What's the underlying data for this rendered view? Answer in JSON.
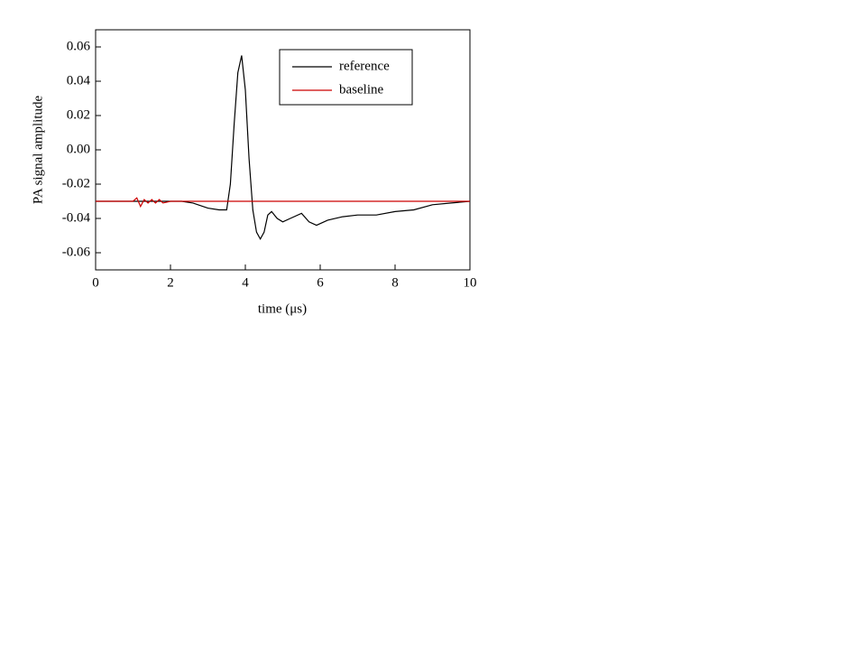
{
  "chart_data": {
    "type": "line",
    "xlabel": "time (μs)",
    "ylabel": "PA signal amplitude",
    "x": [
      0,
      0.5,
      1.0,
      1.1,
      1.2,
      1.3,
      1.4,
      1.5,
      1.6,
      1.7,
      1.8,
      2.0,
      2.3,
      2.6,
      3.0,
      3.3,
      3.5,
      3.6,
      3.7,
      3.8,
      3.9,
      4.0,
      4.1,
      4.2,
      4.3,
      4.4,
      4.5,
      4.6,
      4.7,
      4.85,
      5.0,
      5.2,
      5.5,
      5.7,
      5.9,
      6.2,
      6.6,
      7.0,
      7.5,
      8.0,
      8.5,
      9.0,
      9.5,
      10
    ],
    "series": [
      {
        "name": "reference",
        "color": "#000000",
        "values": [
          -0.03,
          -0.03,
          -0.03,
          -0.03,
          -0.03,
          -0.03,
          -0.03,
          -0.03,
          -0.03,
          -0.03,
          -0.03,
          -0.03,
          -0.03,
          -0.031,
          -0.034,
          -0.035,
          -0.035,
          -0.02,
          0.015,
          0.045,
          0.055,
          0.035,
          -0.005,
          -0.035,
          -0.048,
          -0.052,
          -0.048,
          -0.038,
          -0.036,
          -0.04,
          -0.042,
          -0.04,
          -0.037,
          -0.042,
          -0.044,
          -0.041,
          -0.039,
          -0.038,
          -0.038,
          -0.036,
          -0.035,
          -0.032,
          -0.031,
          -0.03
        ]
      },
      {
        "name": "baseline",
        "color": "#cc0000",
        "values": [
          -0.03,
          -0.03,
          -0.03,
          -0.028,
          -0.033,
          -0.029,
          -0.031,
          -0.029,
          -0.031,
          -0.029,
          -0.031,
          -0.03,
          -0.03,
          -0.03,
          -0.03,
          -0.03,
          -0.03,
          -0.03,
          -0.03,
          -0.03,
          -0.03,
          -0.03,
          -0.03,
          -0.03,
          -0.03,
          -0.03,
          -0.03,
          -0.03,
          -0.03,
          -0.03,
          -0.03,
          -0.03,
          -0.03,
          -0.03,
          -0.03,
          -0.03,
          -0.03,
          -0.03,
          -0.03,
          -0.03,
          -0.03,
          -0.03,
          -0.03,
          -0.03
        ]
      }
    ],
    "xlim": [
      0,
      10
    ],
    "xticks": [
      0,
      2,
      4,
      6,
      8,
      10
    ],
    "ylim": [
      -0.07,
      0.07
    ],
    "yticks": [
      -0.06,
      -0.04,
      -0.02,
      {
        "value": 0,
        "label": "0.00"
      },
      0.02,
      0.04,
      0.06
    ],
    "legend": "upper right",
    "grid": false
  }
}
